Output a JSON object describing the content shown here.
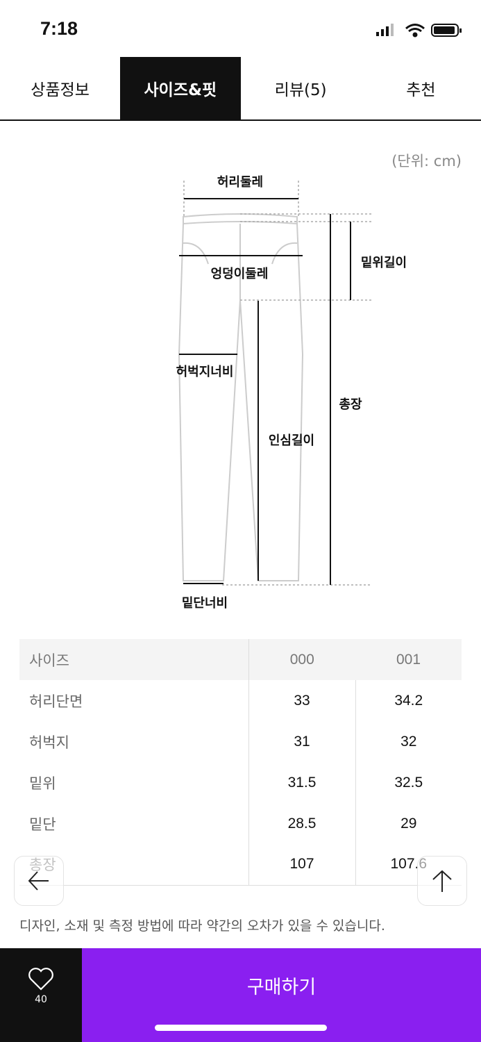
{
  "status": {
    "time": "7:18"
  },
  "tabs": [
    {
      "label": "상품정보"
    },
    {
      "label": "사이즈&핏",
      "active": true
    },
    {
      "label": "리뷰(5)"
    },
    {
      "label": "추천"
    }
  ],
  "unit": "(단위: cm)",
  "diagram": {
    "waist": "허리둘레",
    "hip": "엉덩이둘레",
    "thigh": "허벅지너비",
    "hem": "밑단너비",
    "rise": "밑위길이",
    "total": "총장",
    "inseam": "인심길이"
  },
  "table": {
    "header": [
      "사이즈",
      "000",
      "001"
    ],
    "rows": [
      [
        "허리단면",
        "33",
        "34.2"
      ],
      [
        "허벅지",
        "31",
        "32"
      ],
      [
        "밑위",
        "31.5",
        "32.5"
      ],
      [
        "밑단",
        "28.5",
        "29"
      ],
      [
        "총장",
        "107",
        "107.6"
      ]
    ]
  },
  "note": "디자인, 소재 및 측정 방법에 따라 약간의 오차가 있을 수 있습니다.",
  "bottom": {
    "likes": "40",
    "buy": "구매하기"
  },
  "colors": {
    "accent": "#8a1ff0"
  }
}
